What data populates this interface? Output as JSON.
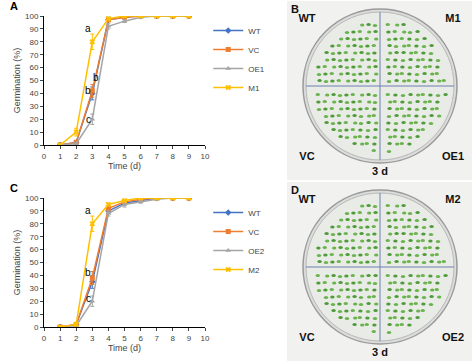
{
  "chart_data": [
    {
      "type": "line",
      "title": "A",
      "x_label": "Time (d)",
      "y_label": "Germination (%)",
      "x": [
        1,
        2,
        3,
        4,
        5,
        6,
        7,
        8,
        9
      ],
      "series": [
        {
          "name": "WT",
          "color": "#4472c4",
          "marker": "diamond",
          "values": [
            0,
            2,
            40,
            97,
            99,
            100,
            100,
            100,
            100
          ],
          "errors": [
            0,
            1,
            5,
            1,
            1,
            0,
            0,
            0,
            0
          ]
        },
        {
          "name": "VC",
          "color": "#ed7d31",
          "marker": "square",
          "values": [
            0,
            2,
            42,
            97,
            99,
            100,
            100,
            100,
            100
          ],
          "errors": [
            0,
            1,
            5,
            1,
            1,
            0,
            0,
            0,
            0
          ]
        },
        {
          "name": "OE1",
          "color": "#a5a5a5",
          "marker": "triangle",
          "values": [
            0,
            1,
            20,
            92,
            96,
            99,
            100,
            100,
            100
          ],
          "errors": [
            0,
            1,
            4,
            2,
            1,
            1,
            0,
            0,
            0
          ]
        },
        {
          "name": "M1",
          "color": "#ffc000",
          "marker": "x",
          "values": [
            0,
            10,
            80,
            98,
            100,
            100,
            100,
            100,
            100
          ],
          "errors": [
            0,
            3,
            6,
            1,
            0,
            0,
            0,
            0,
            0
          ]
        }
      ],
      "annotations": [
        {
          "text": "a",
          "x": 2.75,
          "y": 90
        },
        {
          "text": "b",
          "x": 3.2,
          "y": 52
        },
        {
          "text": "b",
          "x": 2.75,
          "y": 42
        },
        {
          "text": "c",
          "x": 2.75,
          "y": 20
        }
      ],
      "xlim": [
        0,
        10
      ],
      "xticks": [
        0,
        1,
        2,
        3,
        4,
        5,
        6,
        7,
        8,
        9,
        10
      ],
      "ylim": [
        0,
        100
      ],
      "yticks": [
        0,
        10,
        20,
        30,
        40,
        50,
        60,
        70,
        80,
        90,
        100
      ],
      "grid": false,
      "legend": "right"
    },
    {
      "type": "line",
      "title": "C",
      "x_label": "Time (d)",
      "y_label": "Germination (%)",
      "x": [
        1,
        2,
        3,
        4,
        5,
        6,
        7,
        8,
        9
      ],
      "series": [
        {
          "name": "WT",
          "color": "#4472c4",
          "marker": "diamond",
          "values": [
            0,
            2,
            35,
            90,
            96,
            98,
            100,
            100,
            100
          ],
          "errors": [
            0,
            1,
            5,
            2,
            1,
            1,
            0,
            0,
            0
          ]
        },
        {
          "name": "VC",
          "color": "#ed7d31",
          "marker": "square",
          "values": [
            0,
            2,
            38,
            92,
            97,
            99,
            100,
            100,
            100
          ],
          "errors": [
            0,
            1,
            5,
            2,
            1,
            1,
            0,
            0,
            0
          ]
        },
        {
          "name": "OE2",
          "color": "#a5a5a5",
          "marker": "triangle",
          "values": [
            0,
            1,
            20,
            88,
            95,
            97,
            99,
            100,
            100
          ],
          "errors": [
            0,
            1,
            4,
            2,
            2,
            1,
            1,
            0,
            0
          ]
        },
        {
          "name": "M2",
          "color": "#ffc000",
          "marker": "x",
          "values": [
            0,
            2,
            80,
            95,
            98,
            100,
            100,
            100,
            100
          ],
          "errors": [
            0,
            1,
            6,
            1,
            1,
            0,
            0,
            0,
            0
          ]
        }
      ],
      "annotations": [
        {
          "text": "a",
          "x": 2.75,
          "y": 90
        },
        {
          "text": "b",
          "x": 2.75,
          "y": 42
        },
        {
          "text": "c",
          "x": 2.75,
          "y": 22
        }
      ],
      "xlim": [
        0,
        10
      ],
      "xticks": [
        0,
        1,
        2,
        3,
        4,
        5,
        6,
        7,
        8,
        9,
        10
      ],
      "ylim": [
        0,
        100
      ],
      "yticks": [
        0,
        10,
        20,
        30,
        40,
        50,
        60,
        70,
        80,
        90,
        100
      ],
      "grid": false,
      "legend": "right"
    }
  ],
  "photos": [
    {
      "panel": "B",
      "top_left": "WT",
      "top_right": "M1",
      "bottom_left": "VC",
      "bottom_right": "OE1",
      "caption": "3 d"
    },
    {
      "panel": "D",
      "top_left": "WT",
      "top_right": "M2",
      "bottom_left": "VC",
      "bottom_right": "OE2",
      "caption": "3 d"
    }
  ]
}
